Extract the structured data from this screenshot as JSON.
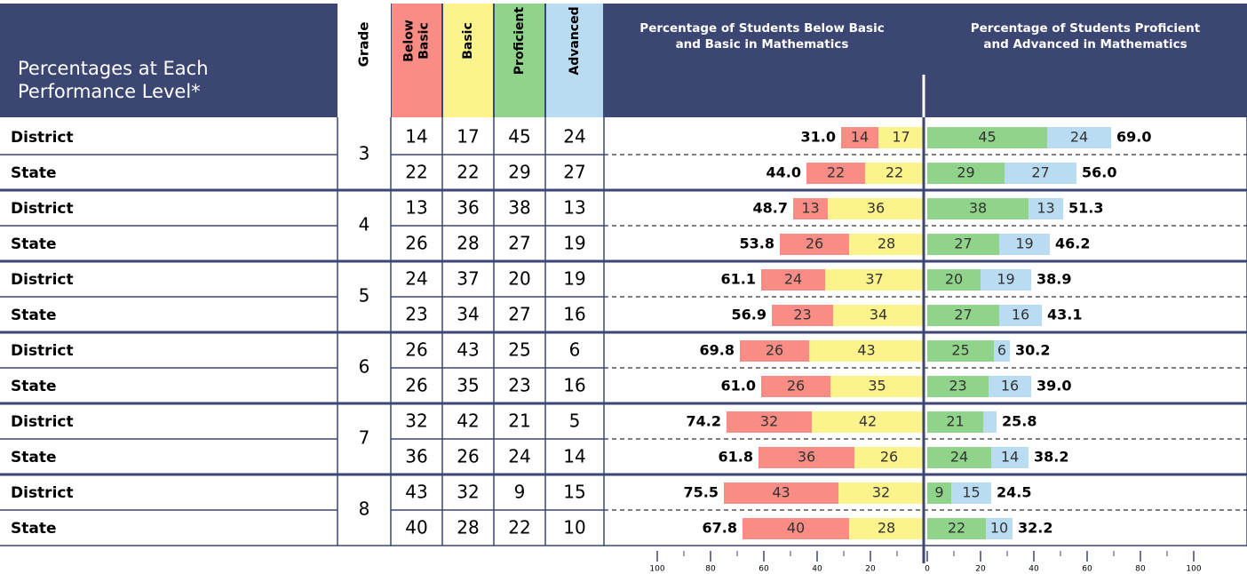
{
  "header": {
    "title_lines": [
      "Percentages at Each",
      "Performance Level*"
    ],
    "grade": "Grade",
    "levels": [
      [
        "Below",
        "Basic"
      ],
      [
        "Basic"
      ],
      [
        "Proficient"
      ],
      [
        "Advanced"
      ]
    ],
    "left_chart_lines": [
      "Percentage of Students Below Basic",
      "and Basic in Mathematics"
    ],
    "right_chart_lines": [
      "Percentage of Students Proficient",
      "and Advanced in Mathematics"
    ]
  },
  "colors": [
    "#f98d85",
    "#fdf38c",
    "#90d38b",
    "#badcf3"
  ],
  "xlim": [
    0,
    100
  ],
  "left_ticks": [
    100,
    80,
    60,
    40,
    20
  ],
  "right_ticks": [
    0,
    20,
    40,
    60,
    80,
    100
  ],
  "rows": [
    {
      "grade": 3,
      "entities": [
        {
          "name": "District",
          "values": [
            14,
            17,
            45,
            24
          ],
          "totals": [
            "31.0",
            "69.0"
          ]
        },
        {
          "name": "State",
          "values": [
            22,
            22,
            29,
            27
          ],
          "totals": [
            "44.0",
            "56.0"
          ]
        }
      ]
    },
    {
      "grade": 4,
      "entities": [
        {
          "name": "District",
          "values": [
            13,
            36,
            38,
            13
          ],
          "totals": [
            "48.7",
            "51.3"
          ]
        },
        {
          "name": "State",
          "values": [
            26,
            28,
            27,
            19
          ],
          "totals": [
            "53.8",
            "46.2"
          ]
        }
      ]
    },
    {
      "grade": 5,
      "entities": [
        {
          "name": "District",
          "values": [
            24,
            37,
            20,
            19
          ],
          "totals": [
            "61.1",
            "38.9"
          ]
        },
        {
          "name": "State",
          "values": [
            23,
            34,
            27,
            16
          ],
          "totals": [
            "56.9",
            "43.1"
          ]
        }
      ]
    },
    {
      "grade": 6,
      "entities": [
        {
          "name": "District",
          "values": [
            26,
            43,
            25,
            6
          ],
          "totals": [
            "69.8",
            "30.2"
          ]
        },
        {
          "name": "State",
          "values": [
            26,
            35,
            23,
            16
          ],
          "totals": [
            "61.0",
            "39.0"
          ]
        }
      ]
    },
    {
      "grade": 7,
      "entities": [
        {
          "name": "District",
          "values": [
            32,
            42,
            21,
            5
          ],
          "totals": [
            "74.2",
            "25.8"
          ]
        },
        {
          "name": "State",
          "values": [
            36,
            26,
            24,
            14
          ],
          "totals": [
            "61.8",
            "38.2"
          ]
        }
      ]
    },
    {
      "grade": 8,
      "entities": [
        {
          "name": "District",
          "values": [
            43,
            32,
            9,
            15
          ],
          "totals": [
            "75.5",
            "24.5"
          ]
        },
        {
          "name": "State",
          "values": [
            40,
            28,
            22,
            10
          ],
          "totals": [
            "67.8",
            "32.2"
          ]
        }
      ]
    }
  ]
}
